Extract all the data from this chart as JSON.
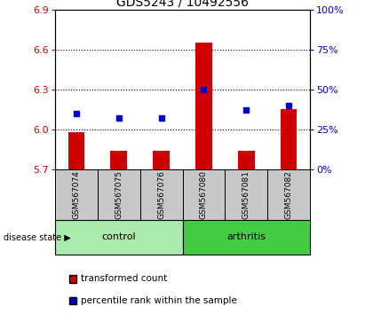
{
  "title": "GDS5243 / 10492556",
  "samples": [
    "GSM567074",
    "GSM567075",
    "GSM567076",
    "GSM567080",
    "GSM567081",
    "GSM567082"
  ],
  "red_values": [
    5.98,
    5.84,
    5.84,
    6.65,
    5.84,
    6.15
  ],
  "blue_percentiles": [
    35,
    32,
    32,
    50,
    37,
    40
  ],
  "y_min": 5.7,
  "y_max": 6.9,
  "y_ticks_red": [
    5.7,
    6.0,
    6.3,
    6.6,
    6.9
  ],
  "y_ticks_blue": [
    0,
    25,
    50,
    75,
    100
  ],
  "groups": [
    {
      "label": "control",
      "indices": [
        0,
        1,
        2
      ],
      "color": "#aaeaaa"
    },
    {
      "label": "arthritis",
      "indices": [
        3,
        4,
        5
      ],
      "color": "#44cc44"
    }
  ],
  "red_color": "#cc0000",
  "blue_color": "#0000cc",
  "bar_base": 5.7,
  "group_label_x": "disease state",
  "legend_red": "transformed count",
  "legend_blue": "percentile rank within the sample",
  "tick_label_color_red": "#cc0000",
  "tick_label_color_blue": "#0000cc",
  "sample_bg_color": "#c8c8c8",
  "grid_color": "black",
  "title_fontsize": 10,
  "tick_fontsize": 8,
  "sample_fontsize": 6.5,
  "group_fontsize": 8,
  "legend_fontsize": 7.5
}
